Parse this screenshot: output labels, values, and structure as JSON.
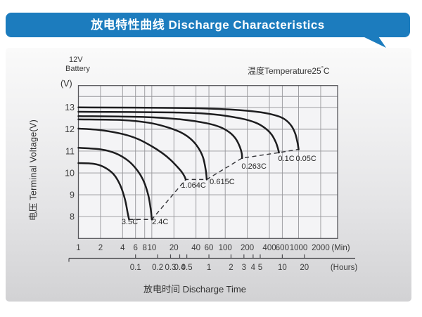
{
  "header": {
    "title": "放电特性曲线 Discharge Characteristics",
    "accent_color": "#1c7cbe"
  },
  "panel": {
    "battery_label_line1": "12V",
    "battery_label_line2": "Battery",
    "temperature": {
      "prefix": "温度Temperature25",
      "degree_symbol": "°",
      "unit": "C"
    },
    "y_unit_label": "(V)",
    "y_axis_title": "电压 Terminal Voltage(V)",
    "x_axis_title": "放电时间 Discharge Time"
  },
  "chart_data": {
    "type": "line",
    "title": "Discharge Characteristics (12V battery, 25°C)",
    "x_scale": "log",
    "x_unit_primary": "(Min)",
    "x_unit_secondary": "(Hours)",
    "x_ticks_minutes": [
      1,
      2,
      4,
      6,
      8,
      10,
      20,
      40,
      60,
      100,
      200,
      400,
      600,
      1000,
      2000
    ],
    "x_ticks_hours": [
      0.1,
      0.2,
      0.3,
      0.4,
      0.5,
      1,
      2,
      3,
      4,
      5,
      10,
      20
    ],
    "xlim_minutes": [
      1,
      3400
    ],
    "y_ticks": [
      8,
      9,
      10,
      11,
      12,
      13
    ],
    "y_extra_gridlines": [
      13.5
    ],
    "ylim": [
      7.0,
      14.0
    ],
    "grid": true,
    "legend_position": "none",
    "series": [
      {
        "name": "0.05C",
        "label_at": [
          1265,
          10.68
        ],
        "points": [
          [
            1,
            13.0
          ],
          [
            30,
            12.97
          ],
          [
            120,
            12.9
          ],
          [
            300,
            12.78
          ],
          [
            500,
            12.62
          ],
          [
            650,
            12.45
          ],
          [
            800,
            12.15
          ],
          [
            900,
            11.8
          ],
          [
            965,
            11.4
          ],
          [
            1000,
            11.08
          ]
        ]
      },
      {
        "name": "0.1C",
        "label_at": [
          680,
          10.68
        ],
        "points": [
          [
            1,
            12.8
          ],
          [
            20,
            12.77
          ],
          [
            70,
            12.68
          ],
          [
            160,
            12.5
          ],
          [
            260,
            12.3
          ],
          [
            350,
            12.05
          ],
          [
            430,
            11.75
          ],
          [
            490,
            11.4
          ],
          [
            525,
            11.1
          ],
          [
            540,
            10.93
          ]
        ]
      },
      {
        "name": "0.263C",
        "label_at": [
          247,
          10.32
        ],
        "points": [
          [
            1,
            12.6
          ],
          [
            8,
            12.56
          ],
          [
            25,
            12.45
          ],
          [
            55,
            12.28
          ],
          [
            85,
            12.1
          ],
          [
            115,
            11.85
          ],
          [
            140,
            11.55
          ],
          [
            158,
            11.2
          ],
          [
            168,
            10.9
          ],
          [
            170,
            10.68
          ]
        ]
      },
      {
        "name": "0.615C",
        "label_at": [
          91,
          9.62
        ],
        "points": [
          [
            1,
            12.45
          ],
          [
            4,
            12.42
          ],
          [
            9,
            12.3
          ],
          [
            16,
            12.1
          ],
          [
            25,
            11.85
          ],
          [
            34,
            11.55
          ],
          [
            43,
            11.15
          ],
          [
            50,
            10.7
          ],
          [
            54.5,
            10.1
          ],
          [
            56,
            9.7
          ]
        ]
      },
      {
        "name": "1.064C",
        "label_at": [
          37,
          9.45
        ],
        "points": [
          [
            1,
            12.03
          ],
          [
            2,
            11.96
          ],
          [
            4,
            11.78
          ],
          [
            6.5,
            11.55
          ],
          [
            10,
            11.22
          ],
          [
            14,
            10.9
          ],
          [
            18,
            10.6
          ],
          [
            22,
            10.3
          ],
          [
            25.5,
            10.05
          ],
          [
            27.8,
            9.85
          ],
          [
            29,
            9.7
          ]
        ]
      },
      {
        "name": "2.4C",
        "label_at": [
          13,
          7.78
        ],
        "points": [
          [
            1,
            11.15
          ],
          [
            2,
            11.08
          ],
          [
            3.2,
            10.9
          ],
          [
            4.8,
            10.55
          ],
          [
            6.4,
            10.1
          ],
          [
            7.8,
            9.6
          ],
          [
            9,
            8.95
          ],
          [
            9.7,
            8.3
          ],
          [
            10,
            7.87
          ]
        ]
      },
      {
        "name": "3.5C",
        "label_at": [
          5.0,
          7.78
        ],
        "points": [
          [
            1,
            10.45
          ],
          [
            1.6,
            10.42
          ],
          [
            2.2,
            10.28
          ],
          [
            3,
            9.95
          ],
          [
            3.7,
            9.45
          ],
          [
            4.3,
            8.8
          ],
          [
            4.7,
            8.15
          ],
          [
            4.9,
            7.87
          ]
        ]
      }
    ],
    "cutoff_line": {
      "style": "dashed",
      "points": [
        [
          4.9,
          7.87
        ],
        [
          10,
          7.87
        ],
        [
          29,
          9.7
        ],
        [
          56,
          9.7
        ],
        [
          170,
          10.68
        ],
        [
          540,
          10.93
        ],
        [
          1000,
          11.08
        ]
      ]
    }
  }
}
